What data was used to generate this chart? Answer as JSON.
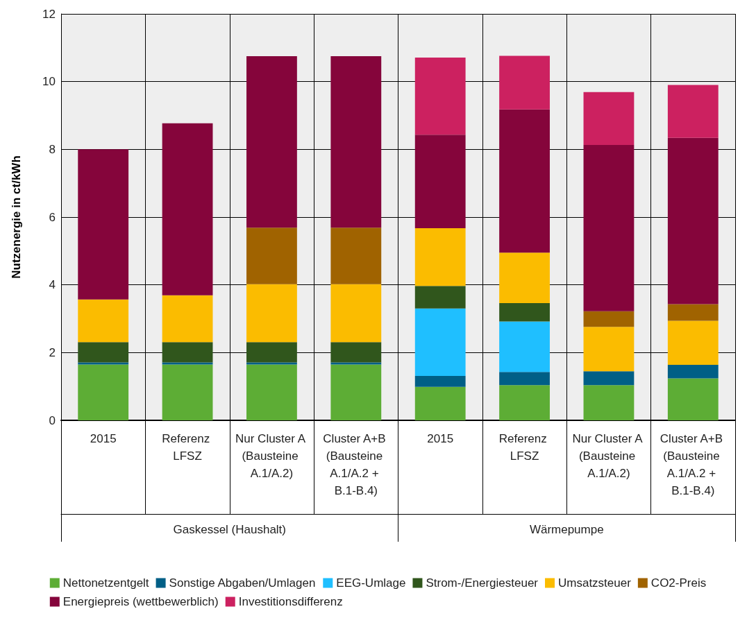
{
  "chart_data": {
    "type": "bar",
    "stacked": true,
    "ylabel": "Nutzenergie in ct/kWh",
    "categories": [
      "2015",
      "Referenz LFSZ",
      "Nur Cluster A (Bausteine A.1/A.2)",
      "Cluster A+B (Bausteine A.1/A.2 + B.1-B.4)",
      "2015",
      "Referenz LFSZ",
      "Nur Cluster A (Bausteine A.1/A.2)",
      "Cluster A+B (Bausteine A.1/A.2 + B.1-B.4)"
    ],
    "annotations": [
      "Gaskessel (Haushalt)",
      "Wärmepumpe"
    ],
    "ylim": [
      0,
      12
    ],
    "yticks": [
      0,
      2,
      4,
      6,
      8,
      10,
      12
    ],
    "grid": true,
    "legend": "bottom",
    "series": [
      {
        "name": "Nettonetzentgelt",
        "color": "#5dad35",
        "values": [
          1.65,
          1.65,
          1.65,
          1.65,
          0.99,
          1.04,
          1.04,
          1.24
        ]
      },
      {
        "name": "Sonstige Abgaben/Umlagen",
        "color": "#005f86",
        "values": [
          0.06,
          0.06,
          0.06,
          0.06,
          0.32,
          0.39,
          0.41,
          0.4
        ]
      },
      {
        "name": "EEG-Umlage",
        "color": "#1fbfff",
        "values": [
          null,
          null,
          null,
          null,
          1.99,
          1.49,
          null,
          null
        ]
      },
      {
        "name": "Strom-/Energiesteuer",
        "color": "#30561c",
        "values": [
          0.6,
          0.6,
          0.6,
          0.6,
          0.67,
          0.54,
          null,
          null
        ]
      },
      {
        "name": "Umsatzsteuer",
        "color": "#fbbc00",
        "values": [
          1.26,
          1.38,
          1.71,
          1.71,
          1.7,
          1.49,
          1.31,
          1.3
        ]
      },
      {
        "name": "CO2-Preis",
        "color": "#a06300",
        "values": [
          null,
          null,
          1.67,
          1.67,
          null,
          null,
          0.46,
          0.49
        ]
      },
      {
        "name": "Energiepreis (wettbewerblich)",
        "color": "#85053b",
        "values": [
          4.43,
          5.08,
          5.06,
          5.06,
          2.76,
          4.23,
          4.91,
          4.91
        ]
      },
      {
        "name": "Investitionsdifferenz",
        "color": "#cc2160",
        "values": [
          null,
          null,
          null,
          null,
          2.28,
          1.58,
          1.56,
          1.56
        ]
      }
    ]
  }
}
